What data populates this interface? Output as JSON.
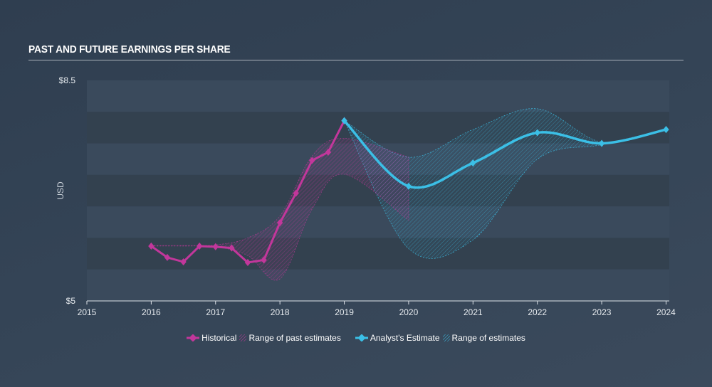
{
  "title": "PAST AND FUTURE EARNINGS PER SHARE",
  "colors": {
    "historical": "#c2379b",
    "estimate": "#3bbfe6",
    "band_light": "#3a4a5c",
    "band_dark": "#33414f",
    "axis": "#dfe4ea"
  },
  "chart_data": {
    "type": "line",
    "title": "PAST AND FUTURE EARNINGS PER SHARE",
    "ylabel": "USD",
    "xlabel": "",
    "xlim": [
      2015,
      2024.05
    ],
    "ylim": [
      5,
      8.5
    ],
    "y_tick_labels": [
      {
        "value": 8.5,
        "label": "$8.5"
      },
      {
        "value": 5,
        "label": "$5"
      }
    ],
    "x_ticks": [
      2015,
      2016,
      2017,
      2018,
      2019,
      2020,
      2021,
      2022,
      2023,
      2024
    ],
    "series": [
      {
        "name": "Historical",
        "x": [
          2016.0,
          2016.25,
          2016.5,
          2016.75,
          2017.0,
          2017.25,
          2017.5,
          2017.75,
          2018.0,
          2018.25,
          2018.5,
          2018.75,
          2019.0
        ],
        "y": [
          5.87,
          5.69,
          5.62,
          5.87,
          5.86,
          5.84,
          5.61,
          5.65,
          6.24,
          6.71,
          7.23,
          7.36,
          7.86
        ]
      },
      {
        "name": "Analyst's Estimate",
        "x": [
          2019.0,
          2020.0,
          2021.0,
          2022.0,
          2023.0,
          2024.0
        ],
        "y": [
          7.86,
          6.82,
          7.19,
          7.67,
          7.5,
          7.72
        ]
      }
    ],
    "range_of_past_estimates": {
      "name": "Range of past estimates",
      "x": [
        2016.0,
        2016.5,
        2017.0,
        2017.5,
        2018.0,
        2018.5,
        2019.0,
        2020.0
      ],
      "upper": [
        5.88,
        5.88,
        5.89,
        6.0,
        6.35,
        7.3,
        7.58,
        7.28
      ],
      "lower": [
        5.87,
        5.87,
        5.86,
        5.72,
        5.35,
        6.46,
        7.01,
        6.28
      ]
    },
    "range_of_estimates": {
      "name": "Range of estimates",
      "x": [
        2019.0,
        2020.0,
        2021.0,
        2022.0,
        2023.0,
        2024.0
      ],
      "upper": [
        7.86,
        7.28,
        7.72,
        8.05,
        7.52,
        7.72
      ],
      "lower": [
        7.86,
        5.83,
        5.97,
        7.25,
        7.48,
        7.72
      ]
    }
  },
  "legend": {
    "historical": "Historical",
    "past_range": "Range of past estimates",
    "estimate": "Analyst's Estimate",
    "estimate_range": "Range of estimates"
  }
}
